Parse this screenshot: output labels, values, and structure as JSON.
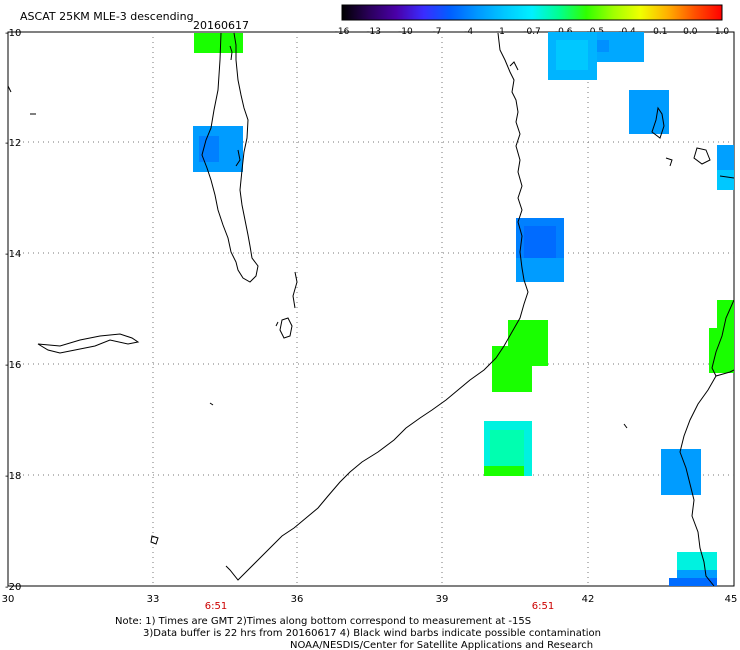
{
  "header": {
    "title": "ASCAT 25KM MLE-3 descending",
    "date": "20160617"
  },
  "colorbar": {
    "labels": [
      "-16",
      "-13",
      "-10",
      "-7",
      "-4",
      "-1",
      "-0.7",
      "-0.6",
      "-0.5",
      "-0.4",
      "-0.1",
      "0.0",
      "1.0"
    ],
    "colors": [
      "#000000",
      "#2a005a",
      "#4a00a8",
      "#3a2cff",
      "#0060ff",
      "#0098ff",
      "#00c8ff",
      "#00f0ff",
      "#00ff90",
      "#30ff00",
      "#a0ff00",
      "#f0ff00",
      "#ffb000",
      "#ff5000",
      "#ff0000"
    ]
  },
  "axes": {
    "lat_labels": [
      "-10",
      "-12",
      "-14",
      "-16",
      "-18",
      "-20"
    ],
    "lon_labels": [
      "30",
      "33",
      "36",
      "39",
      "42",
      "45"
    ],
    "time_labels": [
      "6:51",
      "6:51"
    ]
  },
  "footer": {
    "line1": "Note: 1) Times are GMT 2)Times along bottom correspond to measurement at -15S",
    "line2": "3)Data buffer is 22 hrs from 20160617 4) Black wind barbs indicate possible contamination",
    "line3": "NOAA/NESDIS/Center for Satellite Applications and Research"
  },
  "legend_colors": {
    "coast": "#000000",
    "grid": "#666666",
    "green": "#19ff00",
    "blue": "#009cff",
    "deep_blue": "#006bff",
    "cyan": "#00f2e0",
    "light_blue": "#00b4ff",
    "aqua": "#00ffb0"
  }
}
